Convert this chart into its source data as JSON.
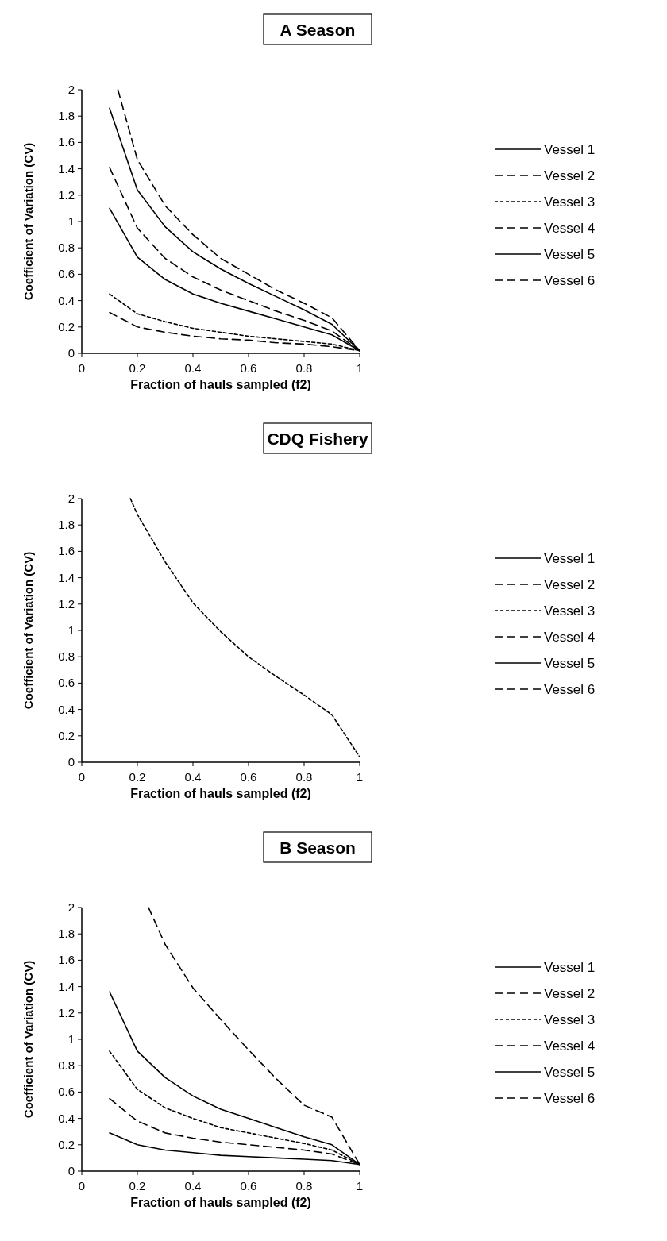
{
  "chart_data": [
    {
      "type": "line",
      "title": "A Season",
      "xlabel": "Fraction of hauls sampled (f2)",
      "ylabel": "Coefficient of Variation (CV)",
      "xlim": [
        0,
        1
      ],
      "xticks": [
        0,
        0.2,
        0.4,
        0.6,
        0.8,
        1
      ],
      "ylim": [
        0,
        2
      ],
      "yticks": [
        0,
        0.2,
        0.4,
        0.6,
        0.8,
        1,
        1.2,
        1.4,
        1.6,
        1.8,
        2
      ],
      "grid": false,
      "legend": "right",
      "x": [
        0.1,
        0.2,
        0.3,
        0.4,
        0.5,
        0.6,
        0.7,
        0.8,
        0.9,
        1
      ],
      "series": [
        {
          "name": "Vessel 1",
          "color": "#000000",
          "line_style": "solid",
          "values": [
            1.86,
            1.24,
            0.96,
            0.77,
            0.64,
            0.53,
            0.43,
            0.33,
            0.22,
            0.02
          ]
        },
        {
          "name": "Vessel 2",
          "color": "#000000",
          "line_style": "dashed",
          "x": [
            0.13,
            0.2,
            0.3,
            0.4,
            0.5,
            0.6,
            0.7,
            0.8,
            0.9,
            1
          ],
          "values": [
            2.0,
            1.47,
            1.12,
            0.9,
            0.72,
            0.6,
            0.48,
            0.38,
            0.27,
            0.02
          ]
        },
        {
          "name": "Vessel 3",
          "color": "#000000",
          "line_style": "dotted",
          "values": [
            0.45,
            0.3,
            0.24,
            0.19,
            0.16,
            0.13,
            0.11,
            0.09,
            0.07,
            0.02
          ]
        },
        {
          "name": "Vessel 4",
          "color": "#000000",
          "line_style": "dashed",
          "values": [
            1.41,
            0.95,
            0.72,
            0.58,
            0.48,
            0.4,
            0.32,
            0.25,
            0.17,
            0.02
          ]
        },
        {
          "name": "Vessel 5",
          "color": "#000000",
          "line_style": "solid",
          "values": [
            1.1,
            0.73,
            0.56,
            0.45,
            0.38,
            0.32,
            0.26,
            0.2,
            0.14,
            0.02
          ]
        },
        {
          "name": "Vessel 6",
          "color": "#000000",
          "line_style": "dashed",
          "values": [
            0.31,
            0.2,
            0.16,
            0.13,
            0.11,
            0.1,
            0.08,
            0.07,
            0.05,
            0.02
          ]
        }
      ]
    },
    {
      "type": "line",
      "title": "CDQ Fishery",
      "xlabel": "Fraction of hauls sampled (f2)",
      "ylabel": "Coefficient of Variation (CV)",
      "xlim": [
        0,
        1
      ],
      "xticks": [
        0,
        0.2,
        0.4,
        0.6,
        0.8,
        1
      ],
      "ylim": [
        0,
        2
      ],
      "yticks": [
        0,
        0.2,
        0.4,
        0.6,
        0.8,
        1,
        1.2,
        1.4,
        1.6,
        1.8,
        2
      ],
      "grid": false,
      "legend": "right",
      "x": [
        0.175,
        0.2,
        0.3,
        0.4,
        0.5,
        0.6,
        0.7,
        0.8,
        0.9,
        1
      ],
      "series": [
        {
          "name": "Vessel 1",
          "color": "#000000",
          "line_style": "solid",
          "values": [
            null,
            null,
            null,
            null,
            null,
            null,
            null,
            null,
            null,
            null
          ]
        },
        {
          "name": "Vessel 2",
          "color": "#000000",
          "line_style": "dashed",
          "values": [
            null,
            null,
            null,
            null,
            null,
            null,
            null,
            null,
            null,
            null
          ]
        },
        {
          "name": "Vessel 3",
          "color": "#000000",
          "line_style": "dotted",
          "values": [
            2.0,
            1.88,
            1.52,
            1.21,
            0.99,
            0.8,
            0.65,
            0.51,
            0.36,
            0.04
          ]
        },
        {
          "name": "Vessel 4",
          "color": "#000000",
          "line_style": "dashed",
          "values": [
            null,
            null,
            null,
            null,
            null,
            null,
            null,
            null,
            null,
            null
          ]
        },
        {
          "name": "Vessel 5",
          "color": "#000000",
          "line_style": "solid",
          "values": [
            null,
            null,
            null,
            null,
            null,
            null,
            null,
            null,
            null,
            null
          ]
        },
        {
          "name": "Vessel 6",
          "color": "#000000",
          "line_style": "dashed",
          "values": [
            null,
            null,
            null,
            null,
            null,
            null,
            null,
            null,
            null,
            null
          ]
        }
      ]
    },
    {
      "type": "line",
      "title": "B Season",
      "xlabel": "Fraction of hauls sampled (f2)",
      "ylabel": "Coefficient of Variation (CV)",
      "xlim": [
        0,
        1
      ],
      "xticks": [
        0,
        0.2,
        0.4,
        0.6,
        0.8,
        1
      ],
      "ylim": [
        0,
        2
      ],
      "yticks": [
        0,
        0.2,
        0.4,
        0.6,
        0.8,
        1,
        1.2,
        1.4,
        1.6,
        1.8,
        2
      ],
      "grid": false,
      "legend": "right",
      "x": [
        0.1,
        0.2,
        0.3,
        0.4,
        0.5,
        0.6,
        0.7,
        0.8,
        0.9,
        1
      ],
      "series": [
        {
          "name": "Vessel 1",
          "color": "#000000",
          "line_style": "solid",
          "values": [
            1.36,
            0.91,
            0.71,
            0.57,
            0.47,
            0.4,
            0.33,
            0.26,
            0.2,
            0.05
          ]
        },
        {
          "name": "Vessel 2",
          "color": "#000000",
          "line_style": "dashed",
          "x": [
            0.24,
            0.3,
            0.4,
            0.5,
            0.6,
            0.7,
            0.8,
            0.9,
            1
          ],
          "values": [
            2.0,
            1.72,
            1.39,
            1.15,
            0.92,
            0.7,
            0.5,
            0.41,
            0.05
          ]
        },
        {
          "name": "Vessel 3",
          "color": "#000000",
          "line_style": "dotted",
          "values": [
            0.91,
            0.62,
            0.48,
            0.4,
            0.33,
            0.29,
            0.25,
            0.21,
            0.16,
            0.05
          ]
        },
        {
          "name": "Vessel 4",
          "color": "#000000",
          "line_style": "dashed",
          "values": [
            null,
            null,
            null,
            null,
            null,
            null,
            null,
            null,
            null,
            null
          ]
        },
        {
          "name": "Vessel 5",
          "color": "#000000",
          "line_style": "solid",
          "values": [
            0.29,
            0.2,
            0.16,
            0.14,
            0.12,
            0.11,
            0.1,
            0.09,
            0.08,
            0.05
          ]
        },
        {
          "name": "Vessel 6",
          "color": "#000000",
          "line_style": "dashed",
          "values": [
            0.55,
            0.38,
            0.29,
            0.25,
            0.22,
            0.2,
            0.18,
            0.16,
            0.13,
            0.05
          ]
        }
      ]
    }
  ]
}
